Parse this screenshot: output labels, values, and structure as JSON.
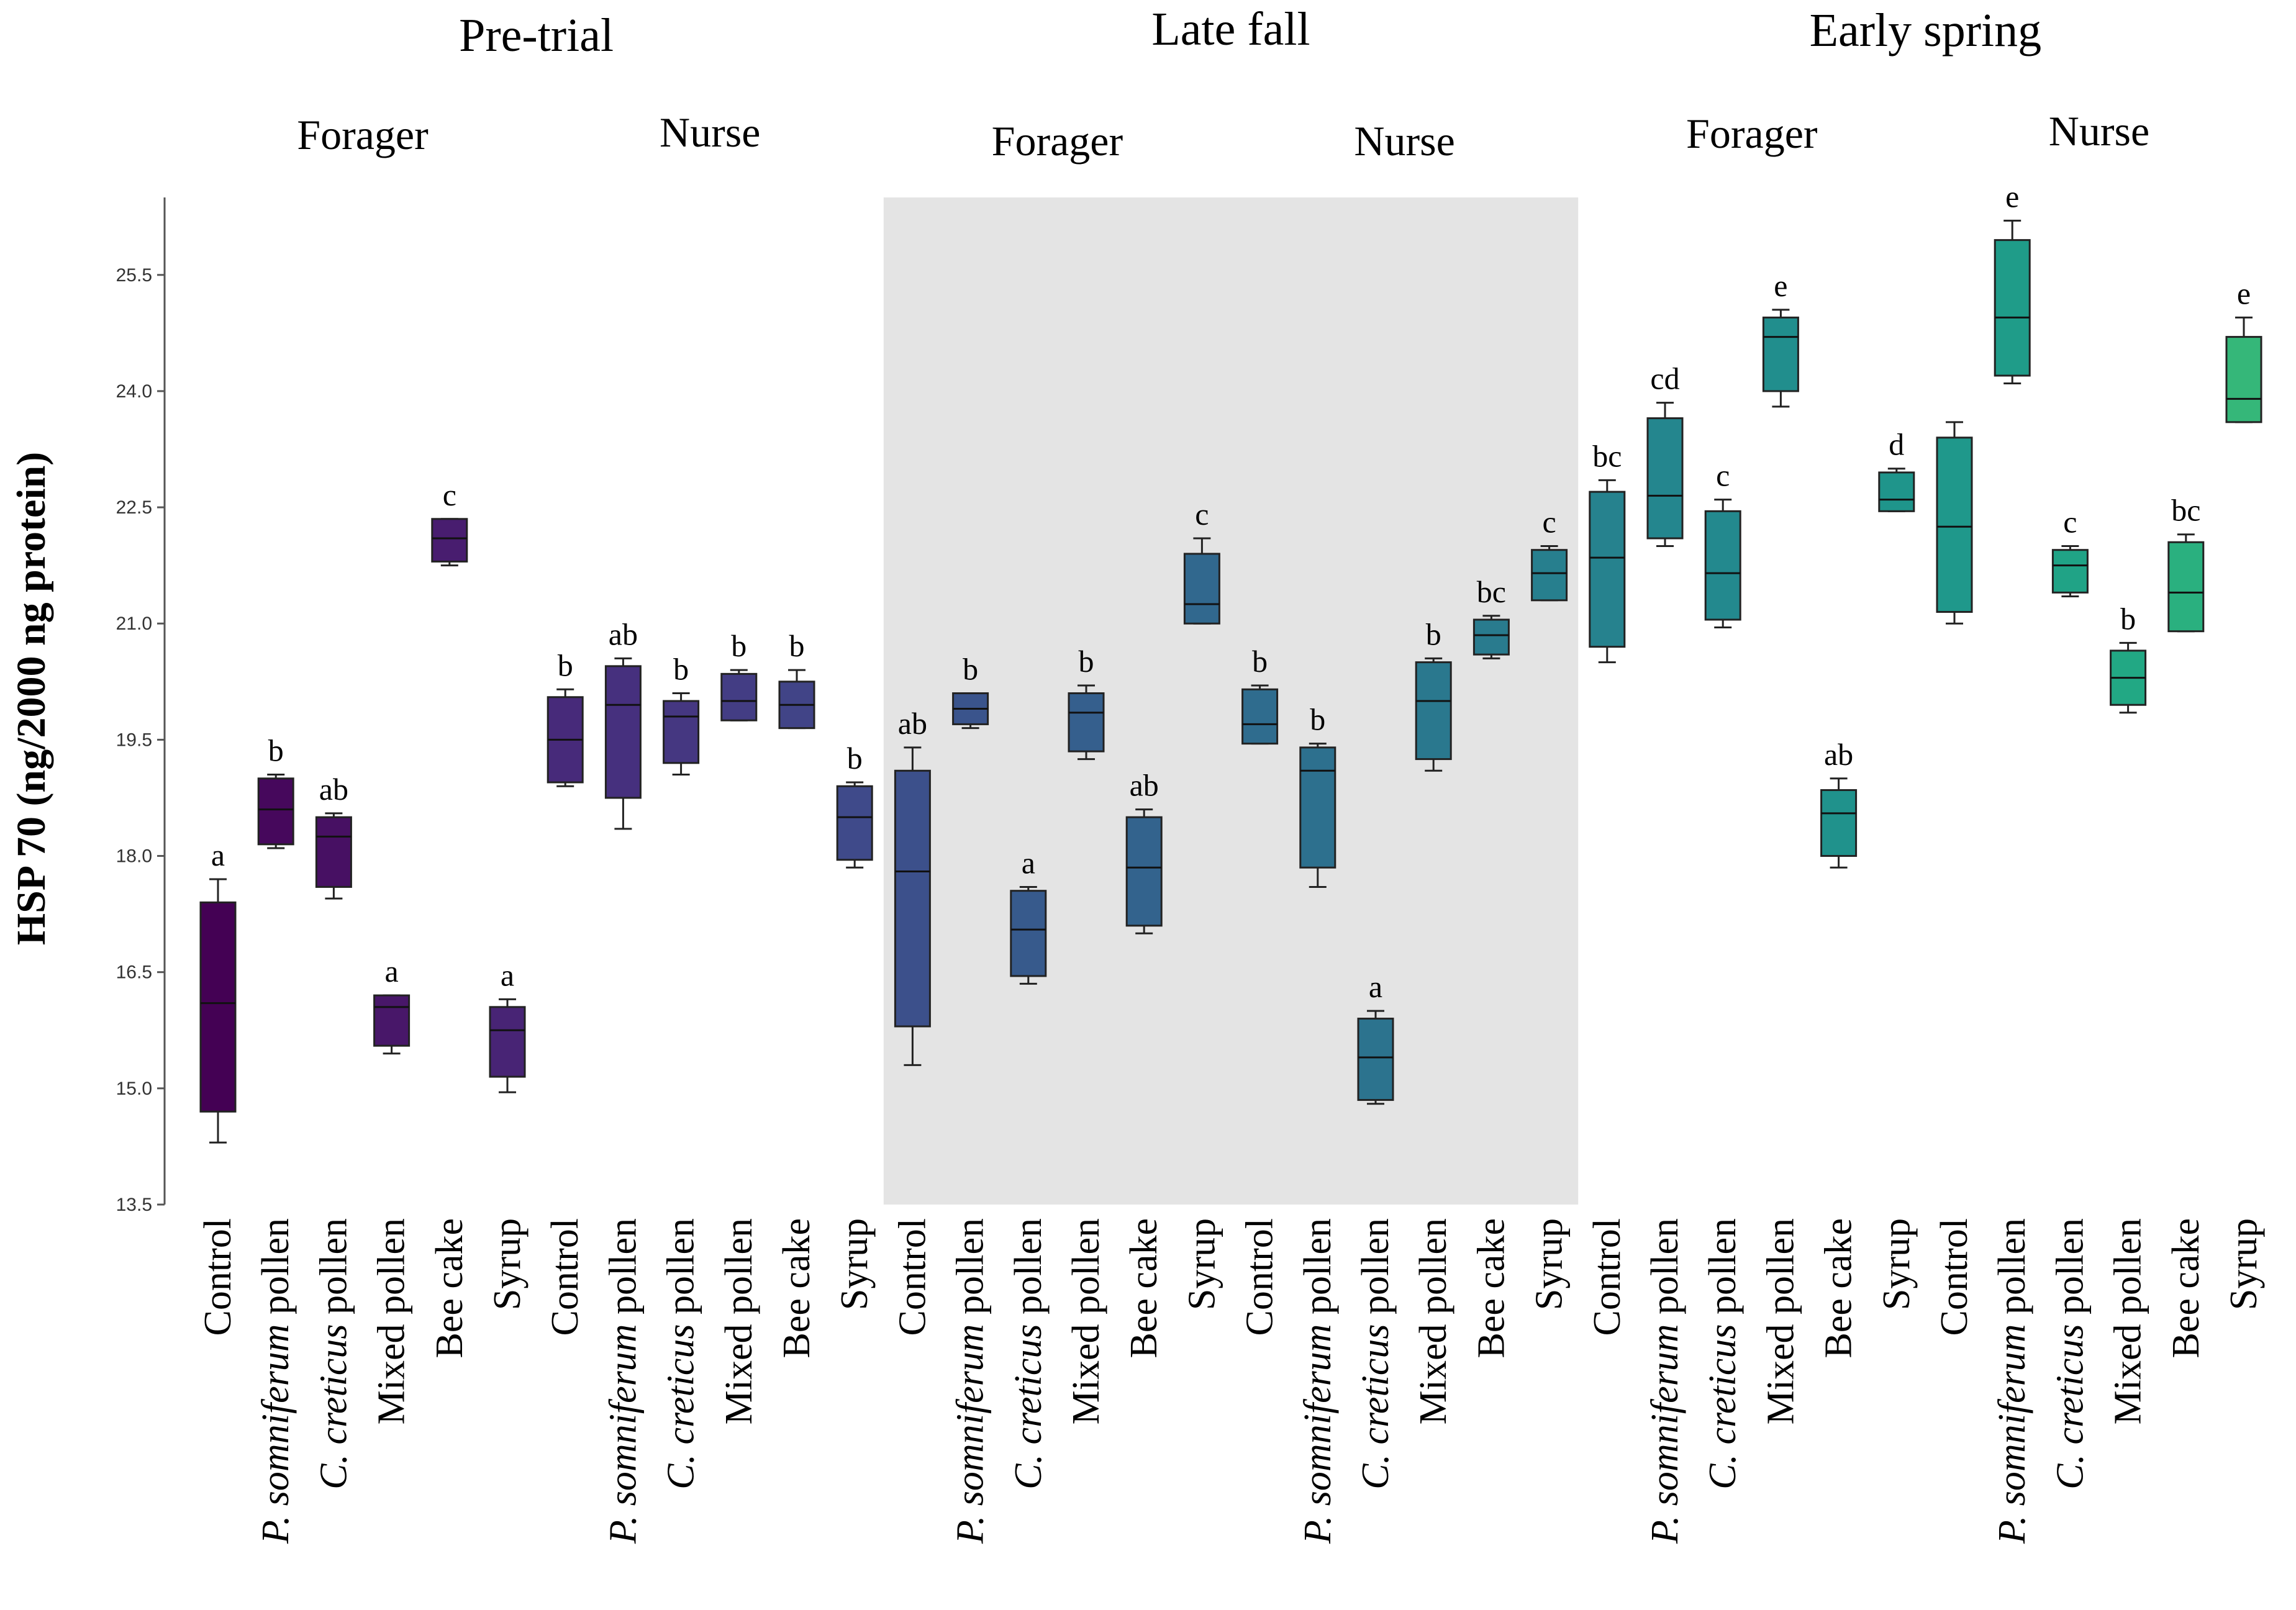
{
  "chart_data": {
    "type": "box",
    "ylabel": "HSP 70 (ng/2000 ng protein)",
    "ylim": [
      13.5,
      26.5
    ],
    "yticks": [
      13.5,
      15.0,
      16.5,
      18.0,
      19.5,
      21.0,
      22.5,
      24.0,
      25.5
    ],
    "ytick_labels": [
      "13.5",
      "15.0",
      "16.5",
      "18.0",
      "19.5",
      "21.0",
      "22.5",
      "24.0",
      "25.5"
    ],
    "periods": [
      {
        "label": "Pre-trial",
        "groups": [
          "Forager",
          "Nurse"
        ],
        "shaded": false
      },
      {
        "label": "Late fall",
        "groups": [
          "Forager",
          "Nurse"
        ],
        "shaded": true
      },
      {
        "label": "Early spring",
        "groups": [
          "Forager",
          "Nurse"
        ],
        "shaded": false
      }
    ],
    "category_labels": [
      {
        "prefix": "",
        "italic": "",
        "suffix": "Control"
      },
      {
        "prefix": "",
        "italic": "P. somniferum",
        "suffix": " pollen"
      },
      {
        "prefix": "",
        "italic": "C. creticus",
        "suffix": " pollen"
      },
      {
        "prefix": "",
        "italic": "",
        "suffix": "Mixed pollen"
      },
      {
        "prefix": "",
        "italic": "",
        "suffix": "Bee cake"
      },
      {
        "prefix": "",
        "italic": "",
        "suffix": "Syrup"
      }
    ],
    "colors": [
      "#440154",
      "#46085c",
      "#471063",
      "#481769",
      "#481d6f",
      "#482475",
      "#472a7a",
      "#46307e",
      "#453781",
      "#433d84",
      "#414487",
      "#3f4a8a",
      "#3c508b",
      "#3a548c",
      "#375a8c",
      "#355f8d",
      "#33638d",
      "#31688e",
      "#2f6c8e",
      "#2d708e",
      "#2c738e",
      "#2a788e",
      "#297b8e",
      "#277f8e",
      "#26828e",
      "#24868e",
      "#23898e",
      "#218e8d",
      "#20928c",
      "#1f958b",
      "#1f988b",
      "#1f9c89",
      "#20a386",
      "#22a884",
      "#2ab07f",
      "#35b779",
      "#46c06f",
      "#52c569",
      "#65cb5e",
      "#73d056",
      "#89d548",
      "#a0da39",
      "#b5de2b",
      "#c0e020",
      "#cae11f",
      "#d5e21a",
      "#e5e419",
      "#f1e51d"
    ],
    "boxes": [
      {
        "min": 14.3,
        "q1": 14.7,
        "median": 16.1,
        "q3": 17.4,
        "max": 17.7,
        "letter": "a"
      },
      {
        "min": 18.1,
        "q1": 18.15,
        "median": 18.6,
        "q3": 19.0,
        "max": 19.05,
        "letter": "b"
      },
      {
        "min": 17.45,
        "q1": 17.6,
        "median": 18.25,
        "q3": 18.5,
        "max": 18.55,
        "letter": "ab"
      },
      {
        "min": 15.45,
        "q1": 15.55,
        "median": 16.05,
        "q3": 16.2,
        "max": 16.2,
        "letter": "a"
      },
      {
        "min": 21.75,
        "q1": 21.8,
        "median": 22.1,
        "q3": 22.35,
        "max": 22.35,
        "letter": "c"
      },
      {
        "min": 14.95,
        "q1": 15.15,
        "median": 15.75,
        "q3": 16.05,
        "max": 16.15,
        "letter": "a"
      },
      {
        "min": 18.9,
        "q1": 18.95,
        "median": 19.5,
        "q3": 20.05,
        "max": 20.15,
        "letter": "b"
      },
      {
        "min": 18.35,
        "q1": 18.75,
        "median": 19.95,
        "q3": 20.45,
        "max": 20.55,
        "letter": "ab"
      },
      {
        "min": 19.05,
        "q1": 19.2,
        "median": 19.8,
        "q3": 20.0,
        "max": 20.1,
        "letter": "b"
      },
      {
        "min": 19.75,
        "q1": 19.75,
        "median": 20.0,
        "q3": 20.35,
        "max": 20.4,
        "letter": "b"
      },
      {
        "min": 19.65,
        "q1": 19.65,
        "median": 19.95,
        "q3": 20.25,
        "max": 20.4,
        "letter": "b"
      },
      {
        "min": 17.85,
        "q1": 17.95,
        "median": 18.5,
        "q3": 18.9,
        "max": 18.95,
        "letter": "b"
      },
      {
        "min": 15.3,
        "q1": 15.8,
        "median": 17.8,
        "q3": 19.1,
        "max": 19.4,
        "letter": "ab"
      },
      {
        "min": 19.65,
        "q1": 19.7,
        "median": 19.9,
        "q3": 20.1,
        "max": 20.1,
        "letter": "b"
      },
      {
        "min": 16.35,
        "q1": 16.45,
        "median": 17.05,
        "q3": 17.55,
        "max": 17.6,
        "letter": "a"
      },
      {
        "min": 19.25,
        "q1": 19.35,
        "median": 19.85,
        "q3": 20.1,
        "max": 20.2,
        "letter": "b"
      },
      {
        "min": 17.0,
        "q1": 17.1,
        "median": 17.85,
        "q3": 18.5,
        "max": 18.6,
        "letter": "ab"
      },
      {
        "min": 21.0,
        "q1": 21.0,
        "median": 21.25,
        "q3": 21.9,
        "max": 22.1,
        "letter": "c"
      },
      {
        "min": 19.45,
        "q1": 19.45,
        "median": 19.7,
        "q3": 20.15,
        "max": 20.2,
        "letter": "b"
      },
      {
        "min": 17.6,
        "q1": 17.85,
        "median": 19.1,
        "q3": 19.4,
        "max": 19.45,
        "letter": "b"
      },
      {
        "min": 14.8,
        "q1": 14.85,
        "median": 15.4,
        "q3": 15.9,
        "max": 16.0,
        "letter": "a"
      },
      {
        "min": 19.1,
        "q1": 19.25,
        "median": 20.0,
        "q3": 20.5,
        "max": 20.55,
        "letter": "b"
      },
      {
        "min": 20.55,
        "q1": 20.6,
        "median": 20.85,
        "q3": 21.05,
        "max": 21.1,
        "letter": "bc"
      },
      {
        "min": 21.3,
        "q1": 21.3,
        "median": 21.65,
        "q3": 21.95,
        "max": 22.0,
        "letter": "c"
      },
      {
        "min": 20.5,
        "q1": 20.7,
        "median": 21.85,
        "q3": 22.7,
        "max": 22.85,
        "letter": "bc"
      },
      {
        "min": 22.0,
        "q1": 22.1,
        "median": 22.65,
        "q3": 23.65,
        "max": 23.85,
        "letter": "cd"
      },
      {
        "min": 20.95,
        "q1": 21.05,
        "median": 21.65,
        "q3": 22.45,
        "max": 22.6,
        "letter": "c"
      },
      {
        "min": 23.8,
        "q1": 24.0,
        "median": 24.7,
        "q3": 24.95,
        "max": 25.05,
        "letter": "e"
      },
      {
        "min": 17.85,
        "q1": 18.0,
        "median": 18.55,
        "q3": 18.85,
        "max": 19.0,
        "letter": "ab"
      },
      {
        "min": 22.45,
        "q1": 22.45,
        "median": 22.6,
        "q3": 22.95,
        "max": 23.0,
        "letter": "d"
      },
      {
        "min": 21.0,
        "q1": 21.15,
        "median": 22.25,
        "q3": 23.4,
        "max": 23.6,
        "letter": ""
      },
      {
        "min": 24.1,
        "q1": 24.2,
        "median": 24.95,
        "q3": 25.95,
        "max": 26.2,
        "letter": "e"
      },
      {
        "min": 21.35,
        "q1": 21.4,
        "median": 21.75,
        "q3": 21.95,
        "max": 22.0,
        "letter": "c"
      },
      {
        "min": 19.85,
        "q1": 19.95,
        "median": 20.3,
        "q3": 20.65,
        "max": 20.75,
        "letter": "b"
      },
      {
        "min": 20.9,
        "q1": 20.9,
        "median": 21.4,
        "q3": 22.05,
        "max": 22.15,
        "letter": "bc"
      },
      {
        "min": 23.6,
        "q1": 23.6,
        "median": 23.9,
        "q3": 24.7,
        "max": 24.95,
        "letter": "e"
      }
    ]
  }
}
